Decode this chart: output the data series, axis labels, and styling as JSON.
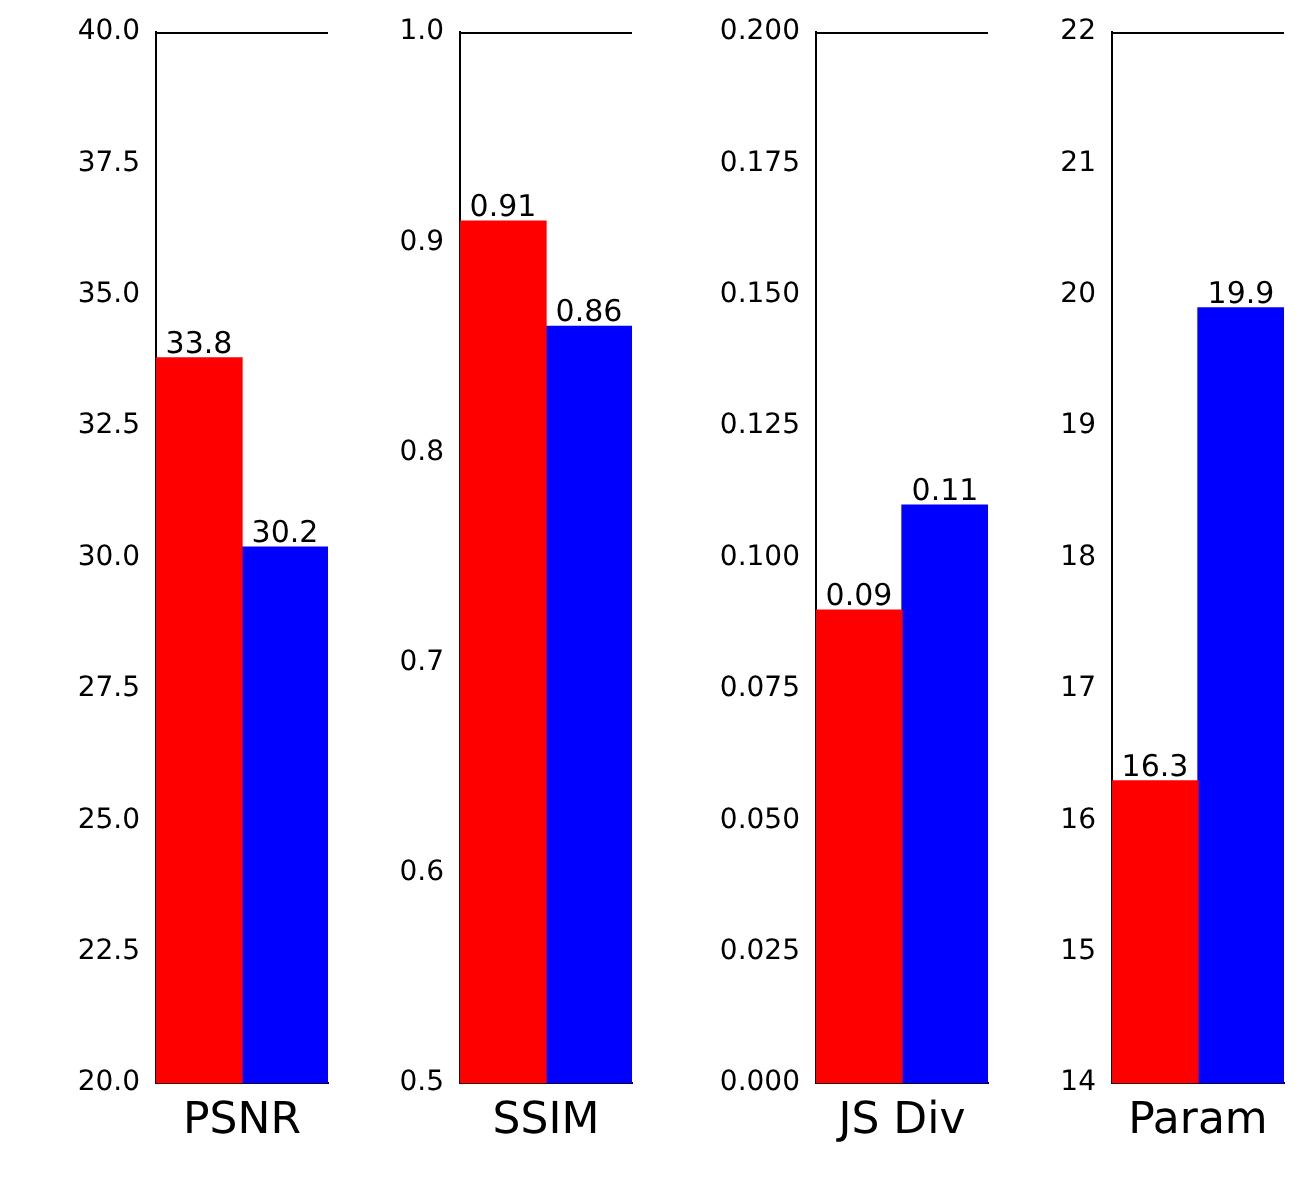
{
  "chart_data": [
    {
      "type": "bar",
      "categories": [
        "PSNR"
      ],
      "series": [
        {
          "color": "#ff0000",
          "values": [
            33.8
          ]
        },
        {
          "color": "#0000ff",
          "values": [
            30.2
          ]
        }
      ],
      "ylim": [
        20,
        40
      ],
      "yticks": [
        {
          "value": 20,
          "label": "20.0"
        },
        {
          "value": 22.5,
          "label": "22.5"
        },
        {
          "value": 25,
          "label": "25.0"
        },
        {
          "value": 27.5,
          "label": "27.5"
        },
        {
          "value": 30,
          "label": "30.0"
        },
        {
          "value": 32.5,
          "label": "32.5"
        },
        {
          "value": 35,
          "label": "35.0"
        },
        {
          "value": 37.5,
          "label": "37.5"
        },
        {
          "value": 40,
          "label": "40.0"
        }
      ],
      "data_labels": true,
      "grid": false,
      "legend": false
    },
    {
      "type": "bar",
      "categories": [
        "SSIM"
      ],
      "series": [
        {
          "color": "#ff0000",
          "values": [
            0.91
          ]
        },
        {
          "color": "#0000ff",
          "values": [
            0.86
          ]
        }
      ],
      "ylim": [
        0.5,
        1.0
      ],
      "yticks": [
        0.5,
        0.6,
        0.7,
        0.8,
        0.9,
        {
          "value": 1,
          "label": "1.0"
        }
      ],
      "data_labels": true,
      "grid": false,
      "legend": false
    },
    {
      "type": "bar",
      "categories": [
        "JS Div"
      ],
      "series": [
        {
          "color": "#ff0000",
          "values": [
            0.09
          ]
        },
        {
          "color": "#0000ff",
          "values": [
            0.11
          ]
        }
      ],
      "ylim": [
        0,
        0.2
      ],
      "yticks": [
        {
          "value": 0,
          "label": "0.000"
        },
        {
          "value": 0.025,
          "label": "0.025"
        },
        {
          "value": 0.05,
          "label": "0.050"
        },
        {
          "value": 0.075,
          "label": "0.075"
        },
        {
          "value": 0.1,
          "label": "0.100"
        },
        {
          "value": 0.125,
          "label": "0.125"
        },
        {
          "value": 0.15,
          "label": "0.150"
        },
        {
          "value": 0.175,
          "label": "0.175"
        },
        {
          "value": 0.2,
          "label": "0.200"
        }
      ],
      "data_labels": true,
      "grid": false,
      "legend": false
    },
    {
      "type": "bar",
      "categories": [
        "Param"
      ],
      "series": [
        {
          "color": "#ff0000",
          "values": [
            16.3
          ]
        },
        {
          "color": "#0000ff",
          "values": [
            19.9
          ]
        }
      ],
      "ylim": [
        14,
        22
      ],
      "yticks": [
        14,
        15,
        16,
        17,
        18,
        19,
        20,
        21,
        22
      ],
      "data_labels": true,
      "grid": false,
      "legend": false
    }
  ]
}
